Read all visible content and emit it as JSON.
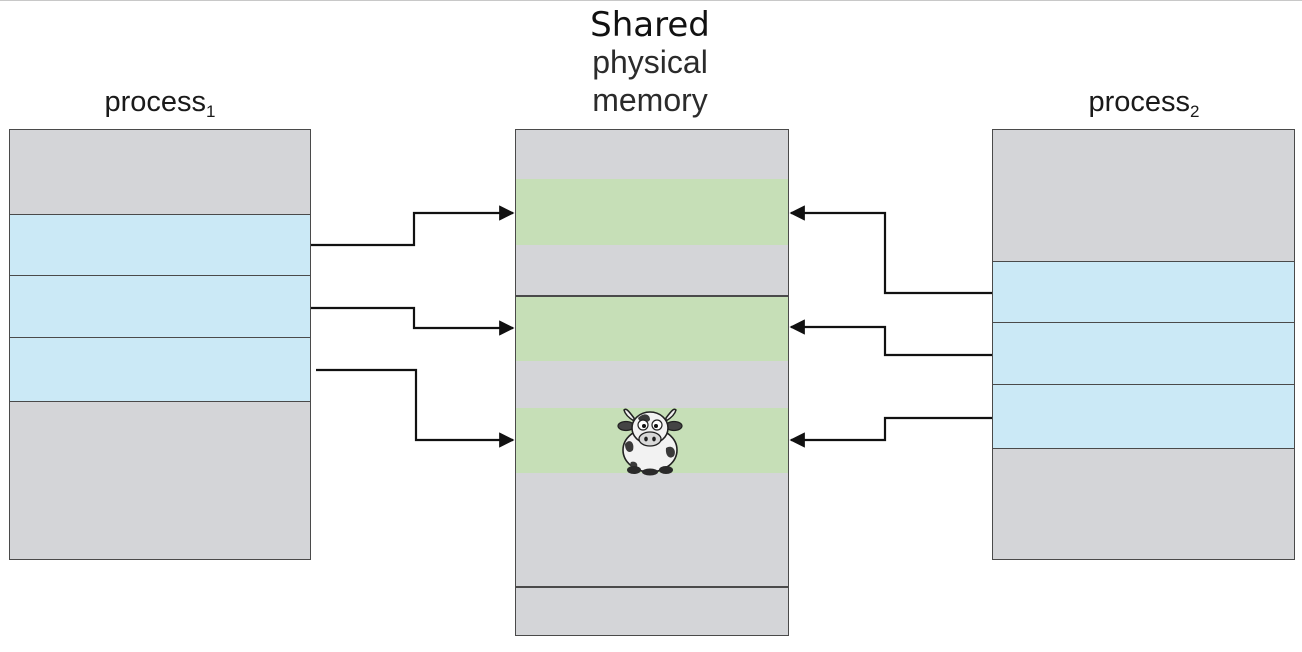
{
  "title": {
    "line1": "Shared",
    "line2": "physical",
    "line3": "memory"
  },
  "process1": {
    "name": "process",
    "subscript": "1"
  },
  "process2": {
    "name": "process",
    "subscript": "2"
  },
  "colors": {
    "gray": "#d4d5d8",
    "shared_page": "#c6dfb7",
    "process_page": "#cbe9f6",
    "border": "#4a4a4a",
    "arrow": "#111111"
  },
  "icons": {
    "cow": "cow-icon"
  }
}
